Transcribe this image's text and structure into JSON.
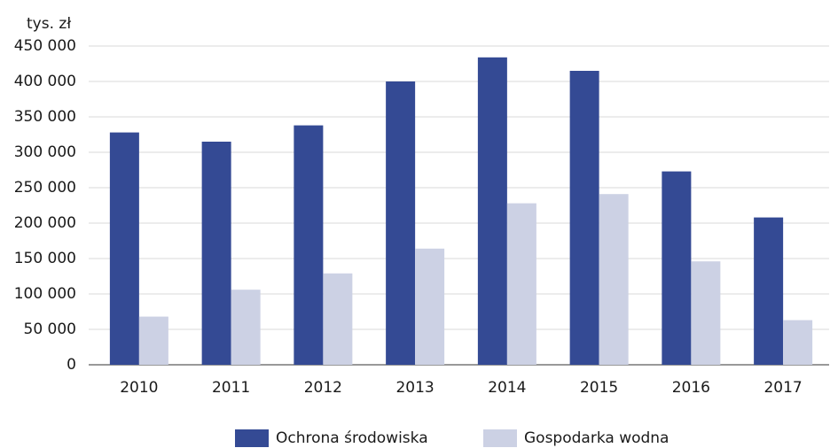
{
  "chart_data": {
    "type": "bar",
    "y_axis_label": "tys. zł",
    "categories": [
      "2010",
      "2011",
      "2012",
      "2013",
      "2014",
      "2015",
      "2016",
      "2017"
    ],
    "series": [
      {
        "name": "Ochrona środowiska",
        "color": "#344a94",
        "values": [
          328000,
          315000,
          338000,
          400000,
          434000,
          415000,
          273000,
          208000
        ]
      },
      {
        "name": "Gospodarka wodna",
        "color": "#ccd1e4",
        "values": [
          68000,
          106000,
          129000,
          164000,
          228000,
          241000,
          146000,
          63000
        ]
      }
    ],
    "ylim": [
      0,
      450000
    ],
    "yticks": [
      0,
      {
        "value": 50000,
        "label": "50 000"
      },
      {
        "value": 100000,
        "label": "100 000"
      },
      {
        "value": 150000,
        "label": "150 000"
      },
      {
        "value": 200000,
        "label": "200 000"
      },
      {
        "value": 250000,
        "label": "250 000"
      },
      {
        "value": 300000,
        "label": "300 000"
      },
      {
        "value": 350000,
        "label": "350 000"
      },
      {
        "value": 400000,
        "label": "400 000"
      },
      {
        "value": 450000,
        "label": "450 000"
      }
    ],
    "grid": true,
    "legend": "bottom"
  }
}
